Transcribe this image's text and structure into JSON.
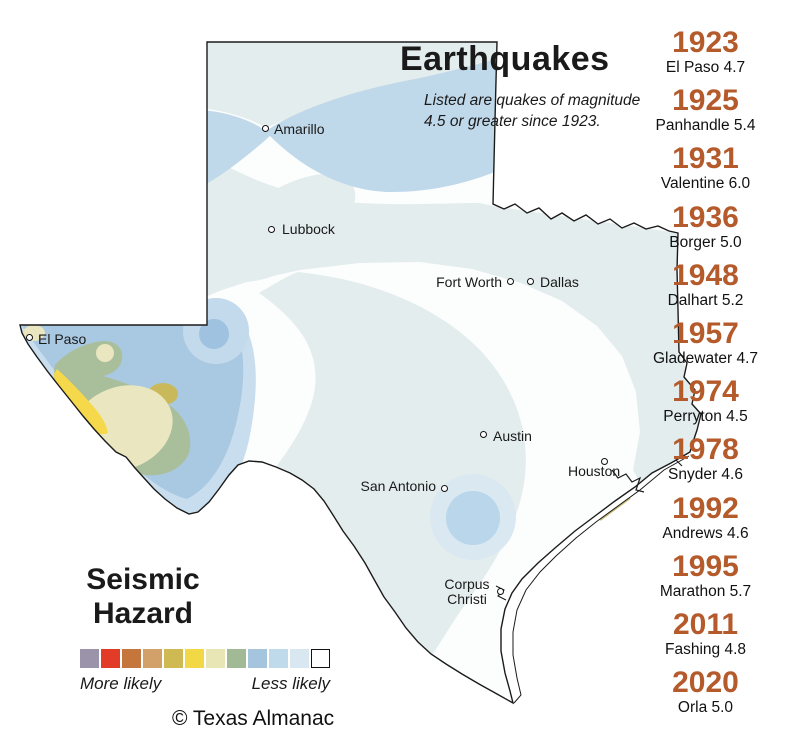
{
  "header": {
    "title": "Earthquakes",
    "subtitle_line1": "Listed are quakes of magnitude",
    "subtitle_line2": "4.5 or greater since 1923."
  },
  "events": [
    {
      "year": "1923",
      "detail": "El Paso 4.7"
    },
    {
      "year": "1925",
      "detail": "Panhandle 5.4"
    },
    {
      "year": "1931",
      "detail": "Valentine 6.0"
    },
    {
      "year": "1936",
      "detail": "Borger 5.0"
    },
    {
      "year": "1948",
      "detail": "Dalhart 5.2"
    },
    {
      "year": "1957",
      "detail": "Gladewater 4.7"
    },
    {
      "year": "1974",
      "detail": "Perryton 4.5"
    },
    {
      "year": "1978",
      "detail": "Snyder 4.6"
    },
    {
      "year": "1992",
      "detail": "Andrews 4.6"
    },
    {
      "year": "1995",
      "detail": "Marathon 5.7"
    },
    {
      "year": "2011",
      "detail": "Fashing 4.8"
    },
    {
      "year": "2020",
      "detail": "Orla 5.0"
    }
  ],
  "map": {
    "cities": [
      {
        "name": "Amarillo"
      },
      {
        "name": "Lubbock"
      },
      {
        "name": "Fort Worth"
      },
      {
        "name": "Dallas"
      },
      {
        "name": "El Paso"
      },
      {
        "name": "Austin"
      },
      {
        "name": "San Antonio"
      },
      {
        "name": "Houston"
      },
      {
        "name": "Corpus Christi"
      }
    ]
  },
  "legend": {
    "title_line1": "Seismic",
    "title_line2": "Hazard",
    "more_label": "More likely",
    "less_label": "Less likely",
    "colors": [
      {
        "hex": "#9a93a9"
      },
      {
        "hex": "#e23b27"
      },
      {
        "hex": "#c5763c"
      },
      {
        "hex": "#d2a069"
      },
      {
        "hex": "#cfb952"
      },
      {
        "hex": "#f2d844"
      },
      {
        "hex": "#e9e6b5"
      },
      {
        "hex": "#a2b995"
      },
      {
        "hex": "#a5c5df"
      },
      {
        "hex": "#bfdaeb"
      },
      {
        "hex": "#d9e7f1"
      },
      {
        "hex": "#ffffff",
        "border": true
      }
    ]
  },
  "footer": {
    "copyright": "© Texas Almanac"
  },
  "palette": {
    "year_color": "#b45a2b",
    "state_base": "#fcfdfd",
    "pale": "#e4edee",
    "band_blue": "#c0d9ea",
    "west_halo": "#c8deee",
    "west_blue": "#a9c8e1",
    "blob_outer": "#c3d9ec",
    "blob_inner": "#9fc2e0",
    "sa_outer": "#dae8f2",
    "sa_inner": "#b9d6ea",
    "green": "#a9bf9b",
    "pale_yellow": "#eae7c0",
    "yellow": "#f6d94a",
    "olive": "#c9b95a",
    "outline": "#1b1b1b"
  }
}
